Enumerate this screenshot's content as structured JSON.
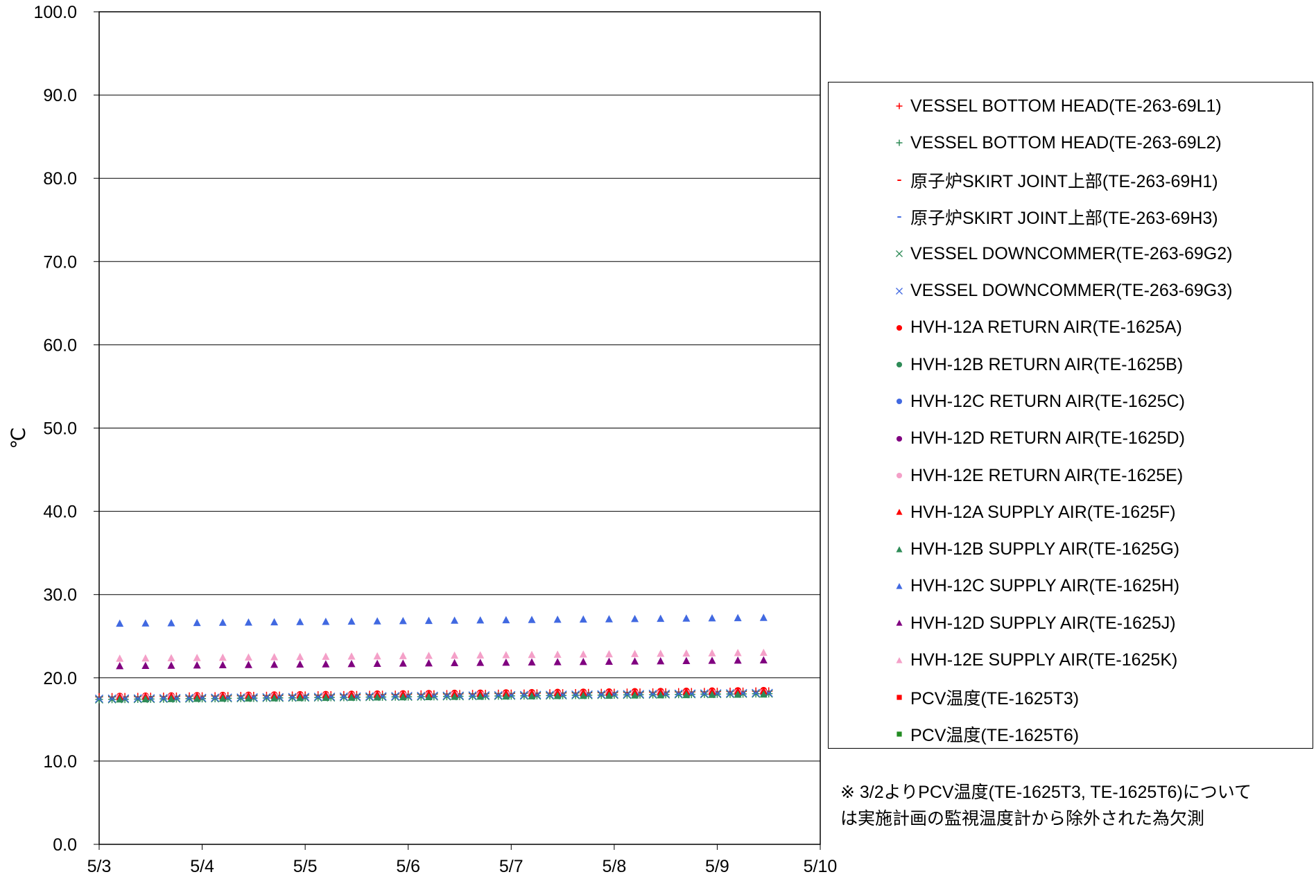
{
  "chart_data": {
    "type": "scatter",
    "ylabel": "℃",
    "xlabel": "",
    "ylim": [
      0,
      100
    ],
    "yticks": [
      "0.0",
      "10.0",
      "20.0",
      "30.0",
      "40.0",
      "50.0",
      "60.0",
      "70.0",
      "80.0",
      "90.0",
      "100.0"
    ],
    "xlim": [
      0,
      7
    ],
    "xticks": [
      "5/3",
      "5/4",
      "5/5",
      "5/6",
      "5/7",
      "5/8",
      "5/9",
      "5/10"
    ],
    "grid": "horizontal",
    "legend_position": "right",
    "x_days": [
      0.0,
      0.125,
      0.25,
      0.375,
      0.5,
      0.625,
      0.75,
      0.875,
      1.0,
      1.125,
      1.25,
      1.375,
      1.5,
      1.625,
      1.75,
      1.875,
      2.0,
      2.125,
      2.25,
      2.375,
      2.5,
      2.625,
      2.75,
      2.875,
      3.0,
      3.125,
      3.25,
      3.375,
      3.5,
      3.625,
      3.75,
      3.875,
      4.0,
      4.125,
      4.25,
      4.375,
      4.5,
      4.625,
      4.75,
      4.875,
      5.0,
      5.125,
      5.25,
      5.375,
      5.5,
      5.625,
      5.75,
      5.875,
      6.0,
      6.125,
      6.25,
      6.375,
      6.5
    ],
    "sparse_x_days": [
      0.2,
      0.45,
      0.7,
      0.95,
      1.2,
      1.45,
      1.7,
      1.95,
      2.2,
      2.45,
      2.7,
      2.95,
      3.2,
      3.45,
      3.7,
      3.95,
      4.2,
      4.45,
      4.7,
      4.95,
      5.2,
      5.45,
      5.7,
      5.95,
      6.2,
      6.45
    ],
    "series": [
      {
        "name": "VESSEL BOTTOM HEAD(TE-263-69L1)",
        "marker": "plus",
        "color": "#ff0000",
        "y_start": 17.7,
        "y_end": 18.4,
        "points": "dense"
      },
      {
        "name": "VESSEL BOTTOM HEAD(TE-263-69L2)",
        "marker": "plus",
        "color": "#2e8b57",
        "y_start": 17.4,
        "y_end": 18.1,
        "points": "dense"
      },
      {
        "name": "原子炉SKIRT JOINT上部(TE-263-69H1)",
        "marker": "dash",
        "color": "#ff0000",
        "y_start": 17.6,
        "y_end": 18.3,
        "points": "dense"
      },
      {
        "name": "原子炉SKIRT JOINT上部(TE-263-69H3)",
        "marker": "dash",
        "color": "#4169e1",
        "y_start": 17.5,
        "y_end": 18.2,
        "points": "dense"
      },
      {
        "name": "VESSEL DOWNCOMMER(TE-263-69G2)",
        "marker": "cross",
        "color": "#2e8b57",
        "y_start": 17.4,
        "y_end": 18.1,
        "points": "dense"
      },
      {
        "name": "VESSEL DOWNCOMMER(TE-263-69G3)",
        "marker": "cross",
        "color": "#4169e1",
        "y_start": 17.5,
        "y_end": 18.2,
        "points": "dense"
      },
      {
        "name": "HVH-12A RETURN AIR(TE-1625A)",
        "marker": "circle",
        "color": "#ff0000",
        "y_start": 17.8,
        "y_end": 18.5,
        "points": "sparse"
      },
      {
        "name": "HVH-12B RETURN AIR(TE-1625B)",
        "marker": "circle",
        "color": "#2e8b57",
        "y_start": 17.5,
        "y_end": 18.1,
        "points": "sparse"
      },
      {
        "name": "HVH-12C RETURN AIR(TE-1625C)",
        "marker": "circle",
        "color": "#4169e1",
        "y_start": 17.6,
        "y_end": 18.2,
        "points": "sparse"
      },
      {
        "name": "HVH-12D RETURN AIR(TE-1625D)",
        "marker": "circle",
        "color": "#800080",
        "y_start": 17.6,
        "y_end": 18.2,
        "points": "sparse"
      },
      {
        "name": "HVH-12E RETURN AIR(TE-1625E)",
        "marker": "circle",
        "color": "#f4a0c8",
        "y_start": 17.7,
        "y_end": 18.3,
        "points": "sparse"
      },
      {
        "name": "HVH-12A SUPPLY AIR(TE-1625F)",
        "marker": "triangle",
        "color": "#ff0000",
        "y_start": 17.7,
        "y_end": 18.4,
        "points": "sparse"
      },
      {
        "name": "HVH-12B SUPPLY AIR(TE-1625G)",
        "marker": "triangle",
        "color": "#2e8b57",
        "y_start": 17.4,
        "y_end": 18.0,
        "points": "sparse"
      },
      {
        "name": "HVH-12C SUPPLY AIR(TE-1625H)",
        "marker": "triangle",
        "color": "#4169e1",
        "y_start": 26.5,
        "y_end": 27.2,
        "points": "sparse"
      },
      {
        "name": "HVH-12D SUPPLY AIR(TE-1625J)",
        "marker": "triangle",
        "color": "#800080",
        "y_start": 21.4,
        "y_end": 22.1,
        "points": "sparse"
      },
      {
        "name": "HVH-12E SUPPLY AIR(TE-1625K)",
        "marker": "triangle",
        "color": "#f4a0c8",
        "y_start": 22.3,
        "y_end": 23.0,
        "points": "sparse"
      },
      {
        "name": "PCV温度(TE-1625T3)",
        "marker": "square",
        "color": "#ff0000",
        "y_start": null,
        "y_end": null,
        "points": "none"
      },
      {
        "name": "PCV温度(TE-1625T6)",
        "marker": "square",
        "color": "#228b22",
        "y_start": null,
        "y_end": null,
        "points": "none"
      }
    ]
  },
  "note": {
    "line1": "※ 3/2よりPCV温度(TE-1625T3, TE-1625T6)について",
    "line2": "は実施計画の監視温度計から除外された為欠測"
  }
}
